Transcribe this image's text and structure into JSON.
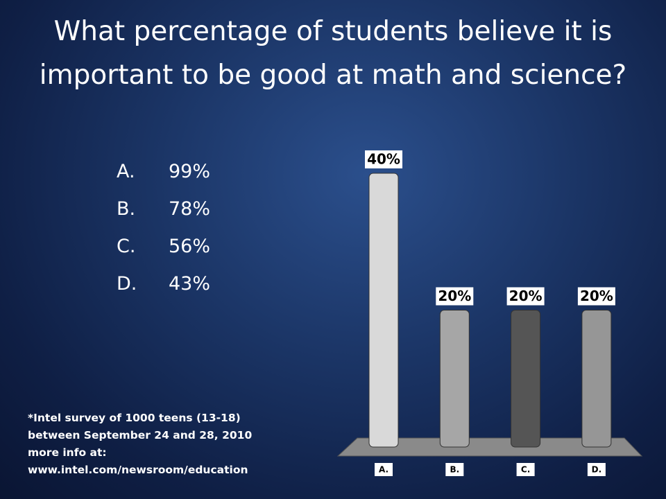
{
  "title": "What percentage of students believe it is important to be good at math and science?",
  "options": [
    {
      "letter": "A.",
      "answer": "99%"
    },
    {
      "letter": "B.",
      "answer": "78%"
    },
    {
      "letter": "C.",
      "answer": "56%"
    },
    {
      "letter": "D.",
      "answer": "43%"
    }
  ],
  "footnote": [
    "*Intel survey of 1000 teens (13-18)",
    "between September 24 and 28, 2010",
    "more info at:",
    "www.intel.com/newsroom/education"
  ],
  "chart_data": {
    "type": "bar",
    "categories": [
      "A.",
      "B.",
      "C.",
      "D."
    ],
    "values": [
      40,
      20,
      20,
      20
    ],
    "value_labels": [
      "40%",
      "20%",
      "20%",
      "20%"
    ],
    "colors": [
      "#d9d9d9",
      "#a6a6a6",
      "#555555",
      "#969696"
    ]
  }
}
